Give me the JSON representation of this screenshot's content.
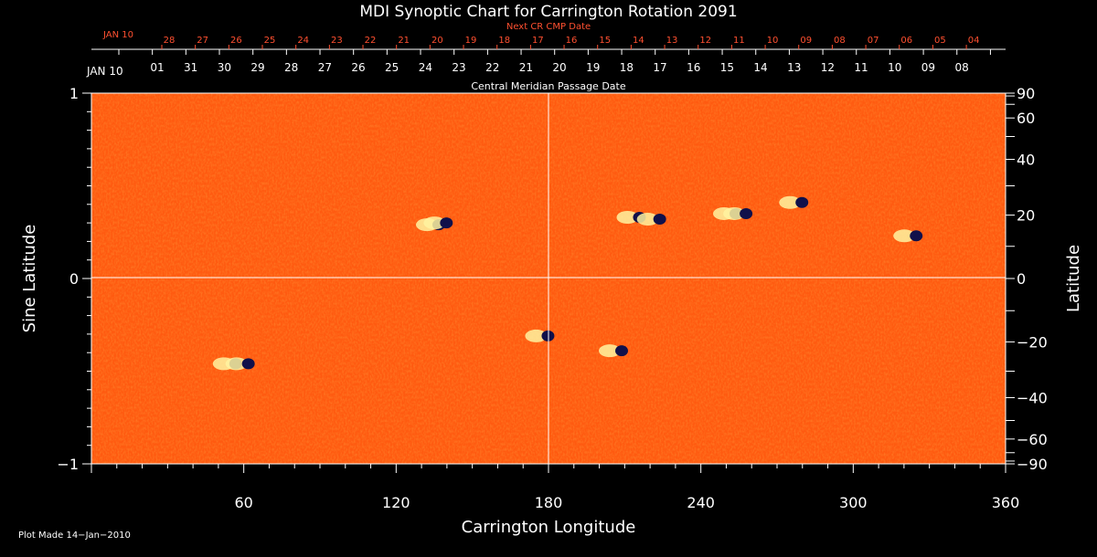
{
  "chart_data": {
    "type": "heatmap",
    "title": "MDI Synoptic Chart for Carrington Rotation 2091",
    "xlabel": "Carrington Longitude",
    "ylabel_left": "Sine Latitude",
    "ylabel_right": "Latitude",
    "xlim": [
      0,
      360
    ],
    "ylim": [
      -1,
      1
    ],
    "x_ticks": [
      60,
      120,
      180,
      240,
      300,
      360
    ],
    "y_ticks_left": [
      {
        "value": 1,
        "label": "1"
      },
      {
        "value": 0,
        "label": "0"
      },
      {
        "value": -1,
        "label": "−1"
      }
    ],
    "y_ticks_right": [
      {
        "lat": 90,
        "label": "90"
      },
      {
        "lat": 60,
        "label": "60"
      },
      {
        "lat": 40,
        "label": "40"
      },
      {
        "lat": 20,
        "label": "20"
      },
      {
        "lat": 0,
        "label": "0"
      },
      {
        "lat": -20,
        "label": "−20"
      },
      {
        "lat": -40,
        "label": "−40"
      },
      {
        "lat": -60,
        "label": "−60"
      },
      {
        "lat": -90,
        "label": "−90"
      }
    ],
    "cmp_axis": {
      "label": "Central Meridian Passage Date",
      "start_label": "JAN 10",
      "day_labels": [
        "01",
        "31",
        "30",
        "29",
        "28",
        "27",
        "26",
        "25",
        "24",
        "23",
        "22",
        "21",
        "20",
        "19",
        "18",
        "17",
        "16",
        "15",
        "14",
        "13",
        "12",
        "11",
        "10",
        "09",
        "08"
      ]
    },
    "next_cr_axis": {
      "label": "Next CR CMP Date",
      "start_label": "JAN 10",
      "day_labels": [
        "28",
        "27",
        "26",
        "25",
        "24",
        "23",
        "22",
        "21",
        "20",
        "19",
        "18",
        "17",
        "16",
        "15",
        "14",
        "13",
        "12",
        "11",
        "10",
        "09",
        "08",
        "07",
        "06",
        "05",
        "04"
      ]
    },
    "active_regions": [
      {
        "lon": 135,
        "sinlat": 0.29
      },
      {
        "lon": 138,
        "sinlat": 0.3
      },
      {
        "lon": 214,
        "sinlat": 0.33
      },
      {
        "lon": 222,
        "sinlat": 0.32
      },
      {
        "lon": 252,
        "sinlat": 0.35
      },
      {
        "lon": 256,
        "sinlat": 0.35
      },
      {
        "lon": 278,
        "sinlat": 0.41
      },
      {
        "lon": 323,
        "sinlat": 0.23
      },
      {
        "lon": 55,
        "sinlat": -0.46
      },
      {
        "lon": 60,
        "sinlat": -0.46
      },
      {
        "lon": 207,
        "sinlat": -0.39
      },
      {
        "lon": 178,
        "sinlat": -0.31
      }
    ],
    "colors": {
      "background": "#000000",
      "field": "#ff5a10",
      "axis": "#ffffff",
      "secondary_axis": "#ff5030"
    }
  },
  "footer": {
    "plot_made": "Plot Made 14−Jan−2010"
  }
}
